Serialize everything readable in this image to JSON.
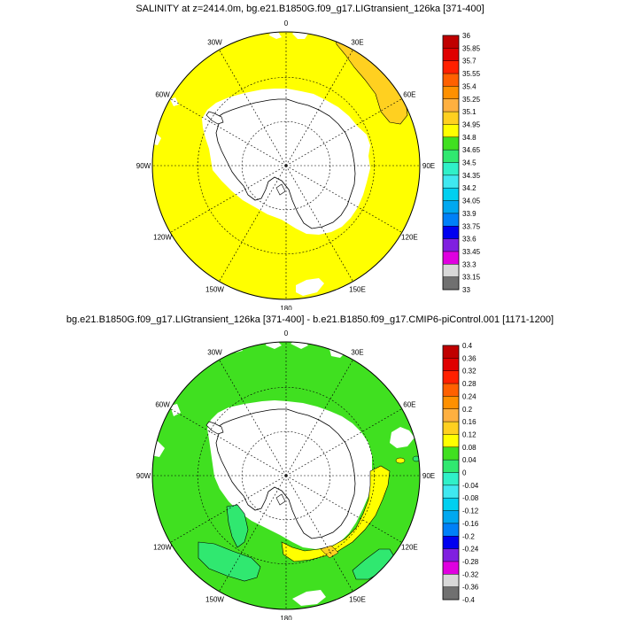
{
  "panels": [
    {
      "title": "SALINITY at z=2414.0m, bg.e21.B1850G.f09_g17.LIGtransient_126ka [371-400]",
      "field_color": "#FFFF00",
      "longitude_labels": [
        "0",
        "30E",
        "60E",
        "90E",
        "120E",
        "150E",
        "180",
        "150W",
        "120W",
        "90W",
        "60W",
        "30W"
      ],
      "colorbar": {
        "labels": [
          "36",
          "35.85",
          "35.7",
          "35.55",
          "35.4",
          "35.25",
          "35.1",
          "34.95",
          "34.8",
          "34.65",
          "34.5",
          "34.35",
          "34.2",
          "34.05",
          "33.9",
          "33.75",
          "33.6",
          "33.45",
          "33.3",
          "33.15",
          "33"
        ],
        "colors": [
          "#C00000",
          "#E00000",
          "#FF2000",
          "#FF6000",
          "#FF9000",
          "#FFB040",
          "#FFD020",
          "#FFFF00",
          "#40E020",
          "#30E870",
          "#30F0C8",
          "#40E8F0",
          "#00D0F0",
          "#00A8F0",
          "#0080F8",
          "#0000F0",
          "#8020E0",
          "#E000E0",
          "#D8D8D8",
          "#707070"
        ]
      }
    },
    {
      "title": "bg.e21.B1850G.f09_g17.LIGtransient_126ka [371-400] - b.e21.B1850.f09_g17.CMIP6-piControl.001 [1171-1200]",
      "field_color": "#40E020",
      "longitude_labels": [
        "0",
        "30E",
        "60E",
        "90E",
        "120E",
        "150E",
        "180",
        "150W",
        "120W",
        "90W",
        "60W",
        "30W"
      ],
      "colorbar": {
        "labels": [
          "0.4",
          "0.36",
          "0.32",
          "0.28",
          "0.24",
          "0.2",
          "0.16",
          "0.12",
          "0.08",
          "0.04",
          "0",
          "-0.04",
          "-0.08",
          "-0.12",
          "-0.16",
          "-0.2",
          "-0.24",
          "-0.28",
          "-0.32",
          "-0.36",
          "-0.4"
        ],
        "colors": [
          "#C00000",
          "#E00000",
          "#FF2000",
          "#FF6000",
          "#FF9000",
          "#FFB040",
          "#FFD020",
          "#FFFF00",
          "#40E020",
          "#30E870",
          "#30F0C8",
          "#40E8F0",
          "#00D0F0",
          "#00A8F0",
          "#0080F8",
          "#0000F0",
          "#8020E0",
          "#E000E0",
          "#D8D8D8",
          "#707070"
        ]
      }
    }
  ]
}
